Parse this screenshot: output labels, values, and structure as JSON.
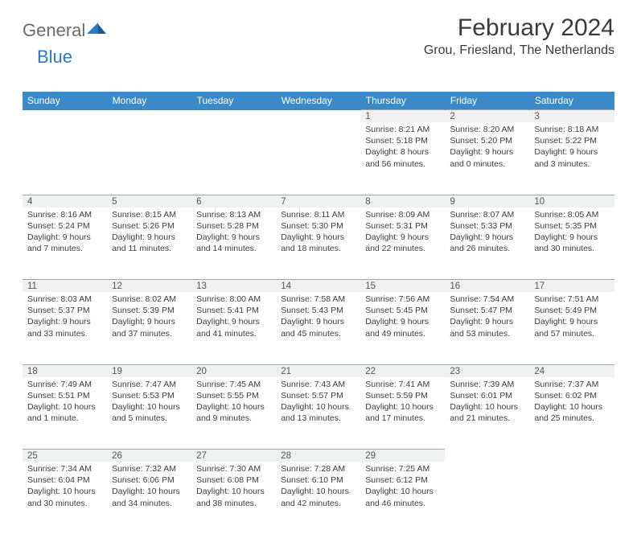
{
  "brand": {
    "part1": "General",
    "part2": "Blue"
  },
  "title": "February 2024",
  "location": "Grou, Friesland, The Netherlands",
  "colors": {
    "header_bg": "#3a8ac9",
    "header_text": "#ffffff",
    "daynum_bg": "#eef0f2",
    "daynum_border": "#9fa6ad",
    "brand_gray": "#6b6b6b",
    "brand_blue": "#2a7ac0"
  },
  "day_headers": [
    "Sunday",
    "Monday",
    "Tuesday",
    "Wednesday",
    "Thursday",
    "Friday",
    "Saturday"
  ],
  "weeks": [
    [
      null,
      null,
      null,
      null,
      {
        "n": "1",
        "sr": "8:21 AM",
        "ss": "5:18 PM",
        "dl": "8 hours and 56 minutes."
      },
      {
        "n": "2",
        "sr": "8:20 AM",
        "ss": "5:20 PM",
        "dl": "9 hours and 0 minutes."
      },
      {
        "n": "3",
        "sr": "8:18 AM",
        "ss": "5:22 PM",
        "dl": "9 hours and 3 minutes."
      }
    ],
    [
      {
        "n": "4",
        "sr": "8:16 AM",
        "ss": "5:24 PM",
        "dl": "9 hours and 7 minutes."
      },
      {
        "n": "5",
        "sr": "8:15 AM",
        "ss": "5:26 PM",
        "dl": "9 hours and 11 minutes."
      },
      {
        "n": "6",
        "sr": "8:13 AM",
        "ss": "5:28 PM",
        "dl": "9 hours and 14 minutes."
      },
      {
        "n": "7",
        "sr": "8:11 AM",
        "ss": "5:30 PM",
        "dl": "9 hours and 18 minutes."
      },
      {
        "n": "8",
        "sr": "8:09 AM",
        "ss": "5:31 PM",
        "dl": "9 hours and 22 minutes."
      },
      {
        "n": "9",
        "sr": "8:07 AM",
        "ss": "5:33 PM",
        "dl": "9 hours and 26 minutes."
      },
      {
        "n": "10",
        "sr": "8:05 AM",
        "ss": "5:35 PM",
        "dl": "9 hours and 30 minutes."
      }
    ],
    [
      {
        "n": "11",
        "sr": "8:03 AM",
        "ss": "5:37 PM",
        "dl": "9 hours and 33 minutes."
      },
      {
        "n": "12",
        "sr": "8:02 AM",
        "ss": "5:39 PM",
        "dl": "9 hours and 37 minutes."
      },
      {
        "n": "13",
        "sr": "8:00 AM",
        "ss": "5:41 PM",
        "dl": "9 hours and 41 minutes."
      },
      {
        "n": "14",
        "sr": "7:58 AM",
        "ss": "5:43 PM",
        "dl": "9 hours and 45 minutes."
      },
      {
        "n": "15",
        "sr": "7:56 AM",
        "ss": "5:45 PM",
        "dl": "9 hours and 49 minutes."
      },
      {
        "n": "16",
        "sr": "7:54 AM",
        "ss": "5:47 PM",
        "dl": "9 hours and 53 minutes."
      },
      {
        "n": "17",
        "sr": "7:51 AM",
        "ss": "5:49 PM",
        "dl": "9 hours and 57 minutes."
      }
    ],
    [
      {
        "n": "18",
        "sr": "7:49 AM",
        "ss": "5:51 PM",
        "dl": "10 hours and 1 minute."
      },
      {
        "n": "19",
        "sr": "7:47 AM",
        "ss": "5:53 PM",
        "dl": "10 hours and 5 minutes."
      },
      {
        "n": "20",
        "sr": "7:45 AM",
        "ss": "5:55 PM",
        "dl": "10 hours and 9 minutes."
      },
      {
        "n": "21",
        "sr": "7:43 AM",
        "ss": "5:57 PM",
        "dl": "10 hours and 13 minutes."
      },
      {
        "n": "22",
        "sr": "7:41 AM",
        "ss": "5:59 PM",
        "dl": "10 hours and 17 minutes."
      },
      {
        "n": "23",
        "sr": "7:39 AM",
        "ss": "6:01 PM",
        "dl": "10 hours and 21 minutes."
      },
      {
        "n": "24",
        "sr": "7:37 AM",
        "ss": "6:02 PM",
        "dl": "10 hours and 25 minutes."
      }
    ],
    [
      {
        "n": "25",
        "sr": "7:34 AM",
        "ss": "6:04 PM",
        "dl": "10 hours and 30 minutes."
      },
      {
        "n": "26",
        "sr": "7:32 AM",
        "ss": "6:06 PM",
        "dl": "10 hours and 34 minutes."
      },
      {
        "n": "27",
        "sr": "7:30 AM",
        "ss": "6:08 PM",
        "dl": "10 hours and 38 minutes."
      },
      {
        "n": "28",
        "sr": "7:28 AM",
        "ss": "6:10 PM",
        "dl": "10 hours and 42 minutes."
      },
      {
        "n": "29",
        "sr": "7:25 AM",
        "ss": "6:12 PM",
        "dl": "10 hours and 46 minutes."
      },
      null,
      null
    ]
  ],
  "labels": {
    "sunrise": "Sunrise:",
    "sunset": "Sunset:",
    "daylight": "Daylight:"
  }
}
